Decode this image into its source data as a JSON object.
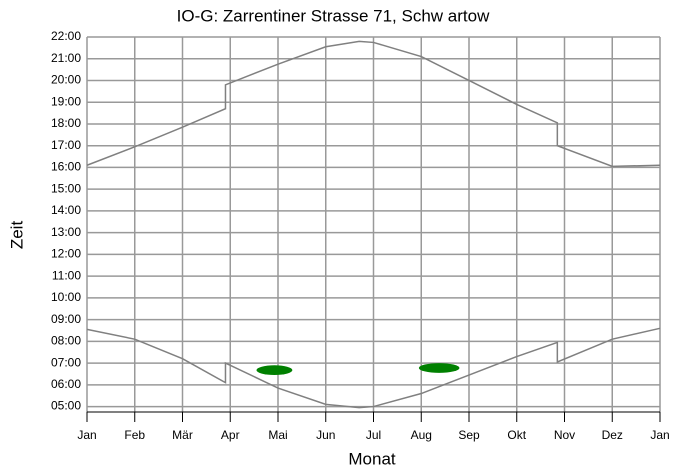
{
  "chart_data": {
    "type": "line",
    "title": "IO-G: Zarrentiner Strasse 71, Schw artow",
    "xlabel": "Monat",
    "ylabel": "Zeit",
    "xlim": [
      0,
      12
    ],
    "xticks": [
      {
        "value": 0,
        "label": "Jan"
      },
      {
        "value": 1,
        "label": "Feb"
      },
      {
        "value": 2,
        "label": "Mär"
      },
      {
        "value": 3,
        "label": "Apr"
      },
      {
        "value": 4,
        "label": "Mai"
      },
      {
        "value": 5,
        "label": "Jun"
      },
      {
        "value": 6,
        "label": "Jul"
      },
      {
        "value": 7,
        "label": "Aug"
      },
      {
        "value": 8,
        "label": "Sep"
      },
      {
        "value": 9,
        "label": "Okt"
      },
      {
        "value": 10,
        "label": "Nov"
      },
      {
        "value": 11,
        "label": "Dez"
      },
      {
        "value": 12,
        "label": "Jan"
      }
    ],
    "ylim": [
      4.75,
      22
    ],
    "yticks": [
      {
        "value": 22,
        "label": "22:00"
      },
      {
        "value": 21,
        "label": "21:00"
      },
      {
        "value": 20,
        "label": "20:00"
      },
      {
        "value": 19,
        "label": "19:00"
      },
      {
        "value": 18,
        "label": "18:00"
      },
      {
        "value": 17,
        "label": "17:00"
      },
      {
        "value": 16,
        "label": "16:00"
      },
      {
        "value": 15,
        "label": "15:00"
      },
      {
        "value": 14,
        "label": "14:00"
      },
      {
        "value": 13,
        "label": "13:00"
      },
      {
        "value": 12,
        "label": "12:00"
      },
      {
        "value": 11,
        "label": "11:00"
      },
      {
        "value": 10,
        "label": "10:00"
      },
      {
        "value": 9,
        "label": "09:00"
      },
      {
        "value": 8,
        "label": "08:00"
      },
      {
        "value": 7,
        "label": "07:00"
      },
      {
        "value": 6,
        "label": "06:00"
      },
      {
        "value": 5,
        "label": "05:00"
      }
    ],
    "grid": true,
    "series": [
      {
        "color": "#808080",
        "x": [
          0,
          1,
          2,
          2.9,
          2.9,
          4,
          5,
          5.7,
          6,
          7,
          8,
          9,
          9.85,
          9.85,
          11,
          12
        ],
        "values": [
          16.1,
          16.95,
          17.85,
          18.7,
          19.8,
          20.75,
          21.55,
          21.8,
          21.75,
          21.1,
          20.0,
          18.9,
          18.05,
          17.0,
          16.05,
          16.1
        ]
      },
      {
        "color": "#808080",
        "x": [
          0,
          1,
          2,
          2.9,
          2.9,
          3,
          4,
          5,
          5.7,
          6,
          7,
          8,
          9,
          9.85,
          9.85,
          11,
          12
        ],
        "values": [
          8.55,
          8.1,
          7.2,
          6.1,
          7.0,
          6.9,
          5.85,
          5.1,
          4.95,
          5.0,
          5.6,
          6.45,
          7.3,
          7.95,
          7.05,
          8.1,
          8.6
        ]
      }
    ],
    "shadows": {
      "color": "#008000",
      "x": [
        [
          3.55,
          4.3
        ],
        [
          6.95,
          7.8
        ]
      ],
      "values": [
        [
          6.45,
          6.9
        ],
        [
          6.55,
          7.0
        ]
      ]
    }
  }
}
